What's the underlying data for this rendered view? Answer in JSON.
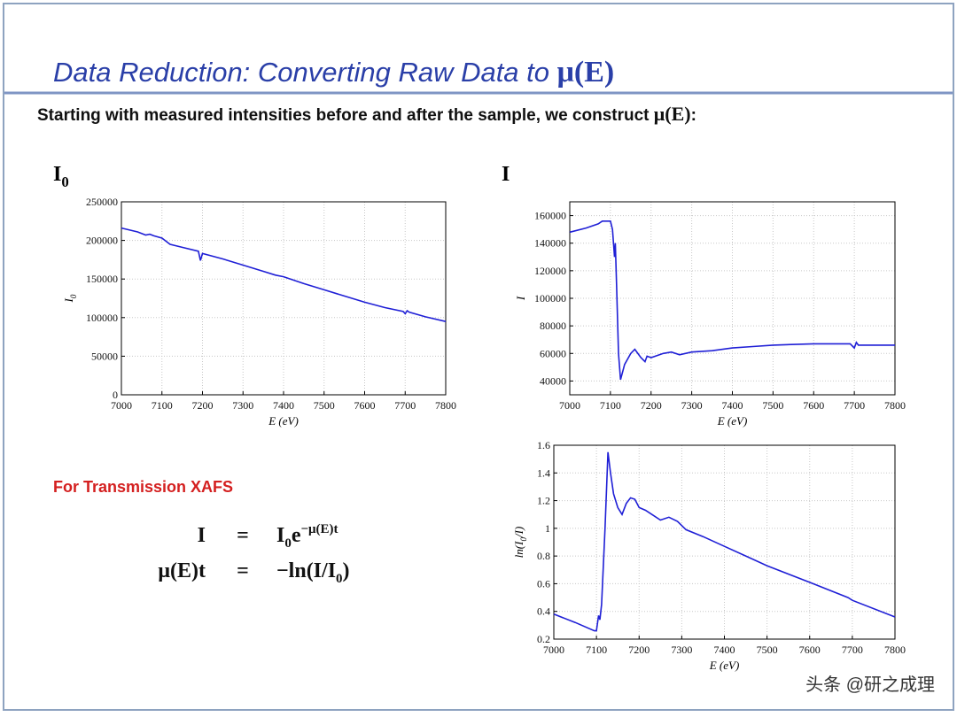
{
  "title": {
    "text": "Data Reduction: Converting Raw Data to ",
    "math": "μ(E)"
  },
  "subtitle": {
    "text": "Starting with measured intensities before and after the sample, we construct ",
    "math": "μ(E)",
    "end": ":"
  },
  "note": "For Transmission XAFS",
  "formulas": [
    {
      "lhs": "I",
      "eq": "=",
      "rhs": [
        "I",
        "0",
        "e",
        "−μ(E)t"
      ]
    },
    {
      "lhs": "μ(E)t",
      "eq": "=",
      "rhs": [
        "−ln(I/I",
        "0",
        ")"
      ]
    }
  ],
  "watermark": "头条 @研之成理",
  "chart_data": [
    {
      "type": "line",
      "panel_label": [
        "I",
        "0"
      ],
      "ylabel": [
        "I",
        "0"
      ],
      "xlabel": "E (eV)",
      "x": [
        7000,
        7040,
        7060,
        7070,
        7080,
        7100,
        7120,
        7150,
        7190,
        7195,
        7200,
        7250,
        7300,
        7350,
        7380,
        7400,
        7450,
        7500,
        7550,
        7600,
        7650,
        7695,
        7700,
        7705,
        7710,
        7750,
        7800
      ],
      "series": [
        {
          "color": "#1f1fd6",
          "values": [
            216000,
            211000,
            207000,
            208000,
            206000,
            203000,
            195000,
            191000,
            186000,
            174000,
            183000,
            176000,
            168000,
            160000,
            155000,
            153000,
            144000,
            136000,
            128000,
            120000,
            113000,
            108000,
            105000,
            109000,
            107000,
            101000,
            95000
          ]
        }
      ],
      "xlim": [
        7000,
        7800
      ],
      "xticks": [
        7000,
        7100,
        7200,
        7300,
        7400,
        7500,
        7600,
        7700,
        7800
      ],
      "ylim": [
        0,
        250000
      ],
      "yticks": [
        0,
        50000,
        100000,
        150000,
        200000,
        250000
      ],
      "grid": true
    },
    {
      "type": "line",
      "panel_label": [
        "I"
      ],
      "ylabel": [
        "I"
      ],
      "xlabel": "E (eV)",
      "x": [
        7000,
        7040,
        7070,
        7080,
        7100,
        7105,
        7110,
        7112,
        7115,
        7120,
        7125,
        7135,
        7150,
        7160,
        7175,
        7185,
        7190,
        7200,
        7230,
        7250,
        7270,
        7300,
        7350,
        7400,
        7450,
        7500,
        7600,
        7690,
        7700,
        7705,
        7710,
        7800
      ],
      "series": [
        {
          "color": "#1f1fd6",
          "values": [
            148000,
            151000,
            154000,
            156000,
            156000,
            150000,
            130000,
            140000,
            110000,
            60000,
            41000,
            52000,
            60000,
            63000,
            57000,
            54000,
            58000,
            57000,
            60000,
            61000,
            59000,
            61000,
            62000,
            64000,
            65000,
            66000,
            67000,
            67000,
            64000,
            68000,
            66000,
            66000
          ]
        }
      ],
      "xlim": [
        7000,
        7800
      ],
      "xticks": [
        7000,
        7100,
        7200,
        7300,
        7400,
        7500,
        7600,
        7700,
        7800
      ],
      "ylim": [
        30000,
        170000
      ],
      "yticks": [
        40000,
        60000,
        80000,
        100000,
        120000,
        140000,
        160000
      ],
      "grid": true
    },
    {
      "type": "line",
      "ylabel": [
        "ln(I",
        "0",
        "/I)"
      ],
      "xlabel": "E (eV)",
      "x": [
        7000,
        7050,
        7095,
        7100,
        7105,
        7108,
        7112,
        7120,
        7127,
        7133,
        7140,
        7150,
        7160,
        7170,
        7180,
        7190,
        7200,
        7215,
        7230,
        7250,
        7270,
        7290,
        7310,
        7350,
        7400,
        7450,
        7500,
        7600,
        7690,
        7700,
        7800
      ],
      "series": [
        {
          "color": "#1f1fd6",
          "values": [
            0.38,
            0.32,
            0.26,
            0.26,
            0.37,
            0.34,
            0.45,
            1.0,
            1.55,
            1.4,
            1.25,
            1.15,
            1.1,
            1.18,
            1.22,
            1.21,
            1.15,
            1.13,
            1.1,
            1.06,
            1.08,
            1.05,
            0.99,
            0.94,
            0.87,
            0.8,
            0.73,
            0.61,
            0.5,
            0.48,
            0.36
          ]
        }
      ],
      "xlim": [
        7000,
        7800
      ],
      "xticks": [
        7000,
        7100,
        7200,
        7300,
        7400,
        7500,
        7600,
        7700,
        7800
      ],
      "ylim": [
        0.2,
        1.6
      ],
      "yticks": [
        0.2,
        0.4,
        0.6,
        0.8,
        1.0,
        1.2,
        1.4,
        1.6
      ],
      "grid": true
    }
  ]
}
